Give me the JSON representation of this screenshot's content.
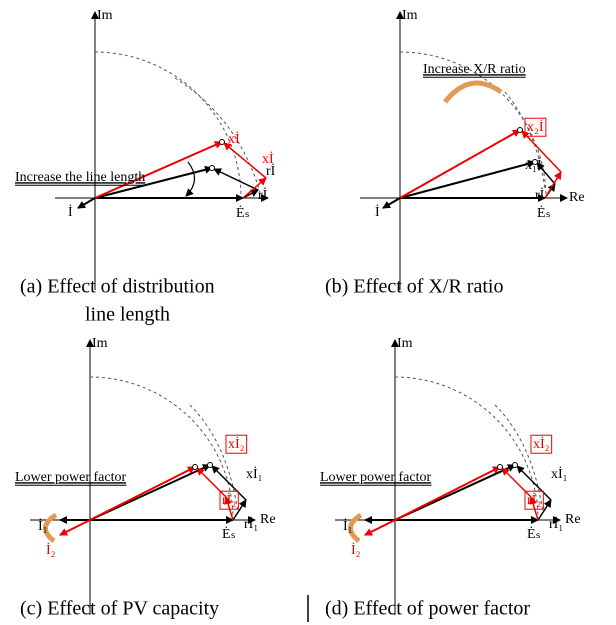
{
  "panels": [
    {
      "axis": "Im",
      "note": "Increase the line length",
      "labels": [
        "xİ",
        "xİ",
        "rİ",
        "rİ",
        "İ",
        "Ėₛ"
      ],
      "caption": [
        "(a) Effect of distribution",
        "line length"
      ]
    },
    {
      "axis": "Im",
      "re": "Re",
      "note": "Increase X/R ratio",
      "labels": [
        "x₂İ",
        "x₁İ",
        "rİ",
        "İ",
        "Ėₛ"
      ],
      "caption": [
        "(b) Effect of X/R ratio"
      ]
    },
    {
      "axis": "Im",
      "re": "Re",
      "note": "Lower power factor",
      "labels": [
        "xİ₂",
        "xİ₁",
        "rİ₂",
        "rİ₁",
        "İ₁",
        "İ₂",
        "Ėₛ"
      ],
      "caption": [
        "(c) Effect of PV capacity"
      ]
    },
    {
      "axis": "Im",
      "re": "Re",
      "note": "Lower power factor",
      "labels": [
        "xİ₂",
        "xİ₁",
        "rİ₂",
        "rİ₁",
        "İ₁",
        "İ₂",
        "Ėₛ"
      ],
      "caption": [
        "(d) Effect of power factor"
      ]
    }
  ]
}
